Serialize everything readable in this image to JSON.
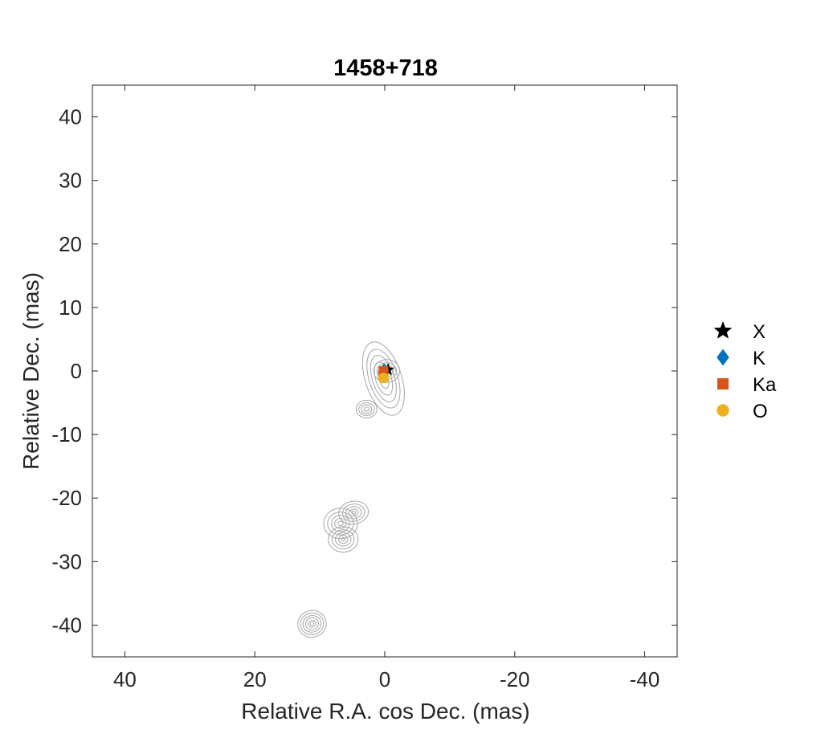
{
  "chart_data": {
    "type": "scatter",
    "title": "1458+718",
    "xlabel": "Relative R.A. cos Dec. (mas)",
    "ylabel": "Relative Dec. (mas)",
    "xlim": [
      45,
      -45
    ],
    "ylim": [
      -45,
      45
    ],
    "x_reversed": true,
    "xticks": [
      40,
      20,
      0,
      -20,
      -40
    ],
    "yticks": [
      40,
      30,
      20,
      10,
      0,
      -10,
      -20,
      -30,
      -40
    ],
    "xtick_labels": [
      "40",
      "20",
      "0",
      "-20",
      "-40"
    ],
    "ytick_labels": [
      "40",
      "30",
      "20",
      "10",
      "0",
      "-10",
      "-20",
      "-30",
      "-40"
    ],
    "grid": false,
    "legend_position": "outside-right",
    "series": [
      {
        "name": "X",
        "marker": "star",
        "color": "#000000",
        "points": [
          [
            -0.5,
            0.2
          ]
        ]
      },
      {
        "name": "K",
        "marker": "diamond",
        "color": "#0072BD",
        "points": [
          [
            0.1,
            0.1
          ]
        ]
      },
      {
        "name": "Ka",
        "marker": "square",
        "color": "#D95319",
        "points": [
          [
            0.2,
            0.0
          ]
        ]
      },
      {
        "name": "O",
        "marker": "circle",
        "color": "#EDB120",
        "points": [
          [
            0.2,
            -1.1
          ]
        ]
      }
    ],
    "contours": {
      "color": "#a6a6a6",
      "components": [
        {
          "x": 0.2,
          "y": -1.2,
          "rx": [
            2.8,
            2.2,
            1.7,
            1.2,
            0.7
          ],
          "ry": [
            6.0,
            4.8,
            3.8,
            2.7,
            1.6
          ],
          "angle": -18
        },
        {
          "x": -0.3,
          "y": 0.0,
          "rx": [
            2.0,
            1.5,
            1.0,
            0.5
          ],
          "ry": [
            1.8,
            1.3,
            0.9,
            0.5
          ],
          "angle": 0
        },
        {
          "x": 2.8,
          "y": -6.0,
          "rx": [
            1.6,
            1.2,
            0.8,
            0.4
          ],
          "ry": [
            1.4,
            1.0,
            0.7,
            0.35
          ],
          "angle": 0
        },
        {
          "x": 4.8,
          "y": -22.3,
          "rx": [
            2.3,
            1.7,
            1.2,
            0.7,
            0.3
          ],
          "ry": [
            1.8,
            1.35,
            0.95,
            0.55,
            0.25
          ],
          "angle": -10
        },
        {
          "x": 6.8,
          "y": -24.0,
          "rx": [
            2.6,
            2.0,
            1.4,
            0.9,
            0.4
          ],
          "ry": [
            2.4,
            1.8,
            1.3,
            0.8,
            0.35
          ],
          "angle": 0
        },
        {
          "x": 6.4,
          "y": -26.5,
          "rx": [
            2.3,
            1.7,
            1.2,
            0.7,
            0.3
          ],
          "ry": [
            2.0,
            1.5,
            1.05,
            0.65,
            0.3
          ],
          "angle": 0
        },
        {
          "x": 11.2,
          "y": -39.8,
          "rx": [
            2.2,
            1.8,
            1.4,
            1.0,
            0.6,
            0.3
          ],
          "ry": [
            2.1,
            1.7,
            1.3,
            0.95,
            0.55,
            0.25
          ],
          "angle": -15
        }
      ]
    }
  }
}
